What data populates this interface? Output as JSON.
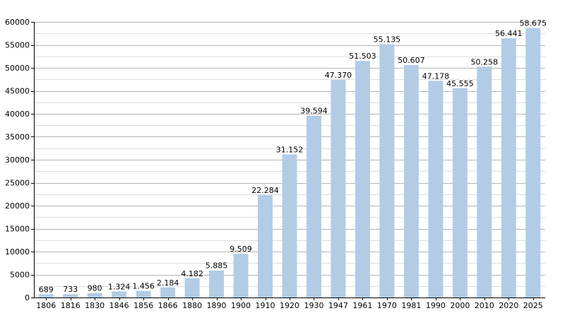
{
  "chart_data": {
    "type": "bar",
    "title": "",
    "xlabel": "",
    "ylabel": "",
    "ylim": [
      0,
      60000
    ],
    "ytick_step": 5000,
    "minor_grid_step": 2500,
    "grid": true,
    "bar_color": "#b2cce5",
    "categories": [
      "1806",
      "1816",
      "1830",
      "1846",
      "1856",
      "1866",
      "1880",
      "1890",
      "1900",
      "1910",
      "1920",
      "1930",
      "1947",
      "1961",
      "1970",
      "1981",
      "1990",
      "2000",
      "2010",
      "2020",
      "2025"
    ],
    "values": [
      689,
      733,
      980,
      1324,
      1456,
      2184,
      4182,
      5885,
      9509,
      22284,
      31152,
      39594,
      47370,
      51503,
      55135,
      50607,
      47178,
      45555,
      50258,
      56441,
      58675
    ],
    "value_labels": [
      "689",
      "733",
      "980",
      "1.324",
      "1.456",
      "2.184",
      "4.182",
      "5.885",
      "9.509",
      "22.284",
      "31.152",
      "39.594",
      "47.370",
      "51.503",
      "55.135",
      "50.607",
      "47.178",
      "45.555",
      "50.258",
      "56.441",
      "58.675"
    ]
  }
}
